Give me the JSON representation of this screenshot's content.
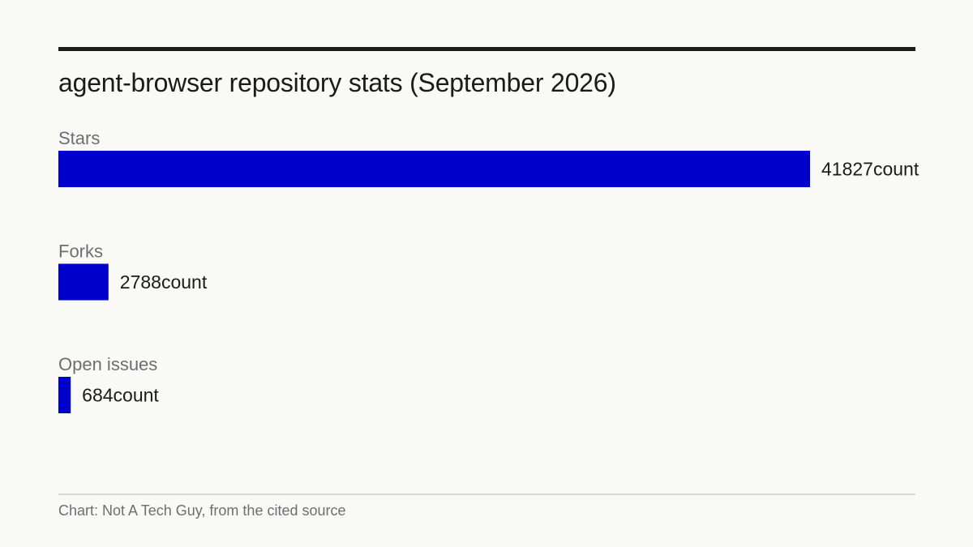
{
  "title": "agent-browser repository stats (September 2026)",
  "source": "Chart: Not A Tech Guy, from the cited source",
  "colors": {
    "bar": "#0000cc",
    "background": "#f9f9f5",
    "text": "#1b1b1b",
    "category_label": "#6e6e72"
  },
  "chart_data": {
    "type": "bar",
    "orientation": "horizontal",
    "title": "agent-browser repository stats (September 2026)",
    "categories": [
      "Stars",
      "Forks",
      "Open issues"
    ],
    "values": [
      41827,
      2788,
      684
    ],
    "unit": "count",
    "value_labels": [
      "41827count",
      "2788count",
      "684count"
    ],
    "xlim": [
      0,
      41827
    ],
    "grid": false,
    "legend": "none"
  }
}
